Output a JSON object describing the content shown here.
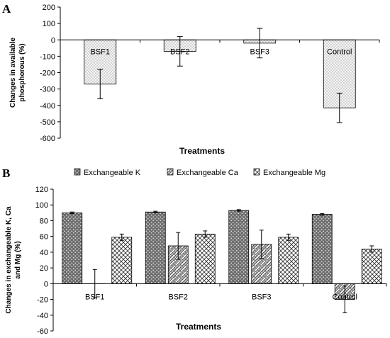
{
  "chart_data": [
    {
      "panel": "A",
      "type": "bar",
      "categories": [
        "BSF1",
        "BSF2",
        "BSF3",
        "Control"
      ],
      "series": [
        {
          "values": [
            -270,
            -70,
            -20,
            -415
          ],
          "errors": [
            90,
            90,
            90,
            90
          ]
        }
      ],
      "xlabel": "Treatments",
      "ylabel_lines": [
        "Changes in available",
        "phosphorous (%)"
      ],
      "ylim": [
        -600,
        200
      ],
      "yticks": [
        -600,
        -500,
        -400,
        -300,
        -200,
        -100,
        0,
        100,
        200
      ],
      "grid": false,
      "legend": "none"
    },
    {
      "panel": "B",
      "type": "bar",
      "categories": [
        "BSF1",
        "BSF2",
        "BSF3",
        "Control"
      ],
      "series": [
        {
          "name": "Exchangeable K",
          "values": [
            90,
            91,
            93,
            88
          ],
          "errors": [
            1,
            1,
            1,
            1
          ]
        },
        {
          "name": "Exchangeable Ca",
          "values": [
            0,
            48,
            50,
            -20
          ],
          "errors": [
            18,
            17,
            18,
            17
          ]
        },
        {
          "name": "Exchangeable Mg",
          "values": [
            59,
            63,
            59,
            44
          ],
          "errors": [
            4,
            4,
            4,
            4
          ]
        }
      ],
      "xlabel": "Treatments",
      "ylabel_lines": [
        "Changes in exchangeable K, Ca",
        "and Mg (%)"
      ],
      "ylim": [
        -60,
        120
      ],
      "yticks": [
        -60,
        -40,
        -20,
        0,
        20,
        40,
        60,
        80,
        100,
        120
      ],
      "grid": false,
      "legend": "top"
    }
  ]
}
